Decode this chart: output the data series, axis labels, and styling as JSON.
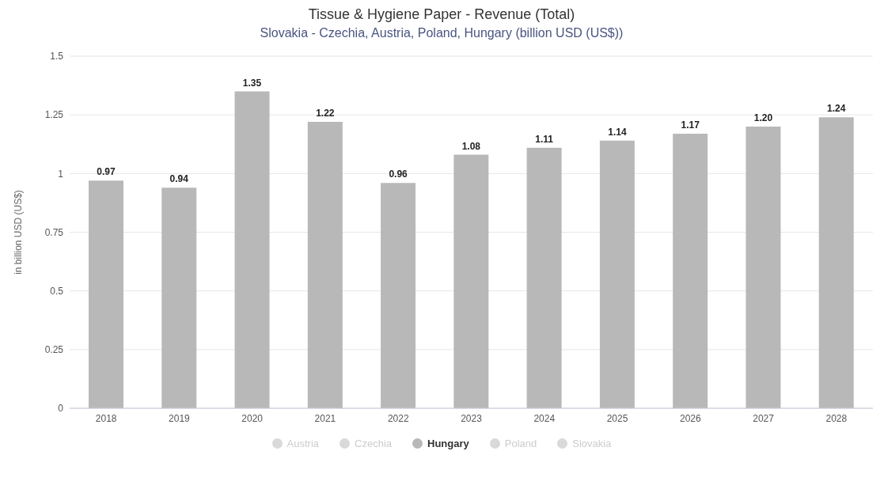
{
  "chart_data": {
    "type": "bar",
    "title": "Tissue & Hygiene Paper - Revenue (Total)",
    "subtitle": "Slovakia - Czechia, Austria, Poland, Hungary (billion USD (US$))",
    "ylabel": "in billion USD (US$)",
    "categories": [
      "2018",
      "2019",
      "2020",
      "2021",
      "2022",
      "2023",
      "2024",
      "2025",
      "2026",
      "2027",
      "2028"
    ],
    "series": [
      {
        "name": "Austria",
        "color": "#d9d9d9",
        "values": [
          null,
          null,
          null,
          null,
          null,
          null,
          null,
          null,
          null,
          null,
          null
        ]
      },
      {
        "name": "Czechia",
        "color": "#d9d9d9",
        "values": [
          null,
          null,
          null,
          null,
          null,
          null,
          null,
          null,
          null,
          null,
          null
        ]
      },
      {
        "name": "Hungary",
        "color": "#b8b8b8",
        "values": [
          0.97,
          0.94,
          1.35,
          1.22,
          0.96,
          1.08,
          1.11,
          1.14,
          1.17,
          1.2,
          1.24
        ],
        "value_labels": [
          "0.97",
          "0.94",
          "1.35",
          "1.22",
          "0.96",
          "1.08",
          "1.11",
          "1.14",
          "1.17",
          "1.20",
          "1.24"
        ]
      },
      {
        "name": "Poland",
        "color": "#d9d9d9",
        "values": [
          null,
          null,
          null,
          null,
          null,
          null,
          null,
          null,
          null,
          null,
          null
        ]
      },
      {
        "name": "Slovakia",
        "color": "#d9d9d9",
        "values": [
          null,
          null,
          null,
          null,
          null,
          null,
          null,
          null,
          null,
          null,
          null
        ]
      }
    ],
    "ylim": [
      0,
      1.5
    ],
    "yticks": [
      0,
      0.25,
      0.5,
      0.75,
      1,
      1.25,
      1.5
    ],
    "grid": "y",
    "legend": "bottom"
  }
}
